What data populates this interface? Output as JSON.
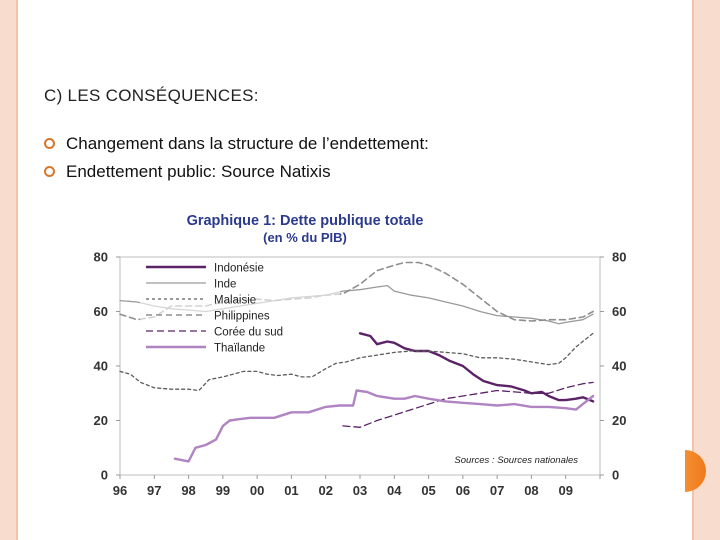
{
  "slide": {
    "title": "C) LES CONSÉQUENCES:",
    "bullets": [
      "Changement dans la structure de l’endettement:",
      "Endettement public: Source Natixis"
    ]
  },
  "colors": {
    "frame": "#f8dccd",
    "accent": "#ef7a1a",
    "bullet": "#d9772b"
  },
  "chart_data": {
    "type": "line",
    "title": "Graphique 1: Dette publique totale",
    "subtitle": "(en % du PIB)",
    "title_color": "#2b3a8c",
    "source": "Sources : Sources nationales",
    "xlim": [
      1996,
      2010
    ],
    "ylim": [
      0,
      80
    ],
    "y_ticks": [
      0,
      20,
      40,
      60,
      80
    ],
    "x_ticks": [
      {
        "value": 1996,
        "label": "96"
      },
      {
        "value": 1997,
        "label": "97"
      },
      {
        "value": 1998,
        "label": "98"
      },
      {
        "value": 1999,
        "label": "99"
      },
      {
        "value": 2000,
        "label": "00"
      },
      {
        "value": 2001,
        "label": "01"
      },
      {
        "value": 2002,
        "label": "02"
      },
      {
        "value": 2003,
        "label": "03"
      },
      {
        "value": 2004,
        "label": "04"
      },
      {
        "value": 2005,
        "label": "05"
      },
      {
        "value": 2006,
        "label": "06"
      },
      {
        "value": 2007,
        "label": "07"
      },
      {
        "value": 2008,
        "label": "08"
      },
      {
        "value": 2009,
        "label": "09"
      }
    ],
    "series": [
      {
        "name": "Indonésie",
        "color": "#5b2268",
        "width": 2.4,
        "dash": "",
        "points": [
          [
            2003.0,
            52
          ],
          [
            2003.3,
            51
          ],
          [
            2003.5,
            48
          ],
          [
            2003.8,
            49
          ],
          [
            2004.0,
            48.5
          ],
          [
            2004.3,
            46.5
          ],
          [
            2004.6,
            45.5
          ],
          [
            2005.0,
            45.5
          ],
          [
            2005.3,
            44
          ],
          [
            2005.6,
            42
          ],
          [
            2006.0,
            40
          ],
          [
            2006.3,
            37
          ],
          [
            2006.6,
            34.5
          ],
          [
            2007.0,
            33
          ],
          [
            2007.4,
            32.5
          ],
          [
            2007.8,
            31
          ],
          [
            2008.0,
            30
          ],
          [
            2008.3,
            30.5
          ],
          [
            2008.5,
            29
          ],
          [
            2008.8,
            27.5
          ],
          [
            2009.0,
            27.5
          ],
          [
            2009.3,
            28
          ],
          [
            2009.5,
            28.5
          ],
          [
            2009.8,
            27
          ]
        ]
      },
      {
        "name": "Inde",
        "color": "#9a9a9a",
        "width": 1.3,
        "dash": "",
        "points": [
          [
            1996.0,
            64
          ],
          [
            1996.5,
            63.5
          ],
          [
            1997.0,
            62
          ],
          [
            1997.5,
            61
          ],
          [
            1998.0,
            60.5
          ],
          [
            1998.5,
            60
          ],
          [
            1999.0,
            61
          ],
          [
            1999.5,
            62
          ],
          [
            2000.0,
            63
          ],
          [
            2000.5,
            64
          ],
          [
            2001.0,
            65
          ],
          [
            2001.5,
            65.5
          ],
          [
            2002.0,
            66
          ],
          [
            2002.5,
            67.5
          ],
          [
            2003.0,
            68
          ],
          [
            2003.5,
            69
          ],
          [
            2003.8,
            69.5
          ],
          [
            2004.0,
            67.5
          ],
          [
            2004.5,
            66
          ],
          [
            2005.0,
            65
          ],
          [
            2005.5,
            63.5
          ],
          [
            2006.0,
            62
          ],
          [
            2006.5,
            60
          ],
          [
            2007.0,
            58.5
          ],
          [
            2007.5,
            58
          ],
          [
            2008.0,
            57.5
          ],
          [
            2008.5,
            56.5
          ],
          [
            2008.8,
            55.5
          ],
          [
            2009.0,
            56
          ],
          [
            2009.5,
            57
          ],
          [
            2009.8,
            59
          ]
        ]
      },
      {
        "name": "Malaisie",
        "color": "#5c5c5c",
        "width": 1.3,
        "dash": "3,3",
        "points": [
          [
            1996.0,
            38
          ],
          [
            1996.3,
            37
          ],
          [
            1996.6,
            34
          ],
          [
            1997.0,
            32
          ],
          [
            1997.5,
            31.5
          ],
          [
            1998.0,
            31.5
          ],
          [
            1998.3,
            31
          ],
          [
            1998.6,
            35
          ],
          [
            1999.0,
            36
          ],
          [
            1999.3,
            37
          ],
          [
            1999.6,
            38
          ],
          [
            2000.0,
            38
          ],
          [
            2000.3,
            37
          ],
          [
            2000.6,
            36.5
          ],
          [
            2001.0,
            37
          ],
          [
            2001.3,
            36
          ],
          [
            2001.6,
            36
          ],
          [
            2002.0,
            39
          ],
          [
            2002.3,
            41
          ],
          [
            2002.6,
            41.5
          ],
          [
            2003.0,
            43
          ],
          [
            2003.5,
            44
          ],
          [
            2004.0,
            45
          ],
          [
            2004.5,
            45.5
          ],
          [
            2005.0,
            45.5
          ],
          [
            2005.5,
            45
          ],
          [
            2006.0,
            44.5
          ],
          [
            2006.5,
            43
          ],
          [
            2007.0,
            43
          ],
          [
            2007.5,
            42.5
          ],
          [
            2008.0,
            41.5
          ],
          [
            2008.5,
            40.5
          ],
          [
            2008.8,
            41
          ],
          [
            2009.0,
            43
          ],
          [
            2009.3,
            47
          ],
          [
            2009.8,
            52
          ]
        ]
      },
      {
        "name": "Philippines",
        "color": "#8e8e8e",
        "width": 1.6,
        "dash": "6,4",
        "points": [
          [
            1996.0,
            59
          ],
          [
            1996.5,
            57
          ],
          [
            1997.0,
            58
          ],
          [
            1997.5,
            62
          ],
          [
            1998.0,
            62
          ],
          [
            1998.5,
            62
          ],
          [
            1999.0,
            63.5
          ],
          [
            1999.5,
            64
          ],
          [
            2000.0,
            64.5
          ],
          [
            2000.5,
            64
          ],
          [
            2001.0,
            64.5
          ],
          [
            2001.5,
            65
          ],
          [
            2002.0,
            66
          ],
          [
            2002.5,
            66.5
          ],
          [
            2003.0,
            70
          ],
          [
            2003.5,
            75
          ],
          [
            2004.0,
            77
          ],
          [
            2004.3,
            78
          ],
          [
            2004.7,
            78
          ],
          [
            2005.0,
            77
          ],
          [
            2005.5,
            74
          ],
          [
            2006.0,
            70
          ],
          [
            2006.5,
            65
          ],
          [
            2007.0,
            60
          ],
          [
            2007.5,
            57
          ],
          [
            2008.0,
            56.5
          ],
          [
            2008.5,
            57
          ],
          [
            2009.0,
            57
          ],
          [
            2009.5,
            58
          ],
          [
            2009.8,
            60
          ]
        ]
      },
      {
        "name": "Corée du sud",
        "color": "#5b2268",
        "width": 1.3,
        "dash": "7,4",
        "points": [
          [
            2002.5,
            18
          ],
          [
            2003.0,
            17.5
          ],
          [
            2003.5,
            20
          ],
          [
            2004.0,
            22
          ],
          [
            2004.5,
            24
          ],
          [
            2005.0,
            26
          ],
          [
            2005.5,
            28
          ],
          [
            2006.0,
            29
          ],
          [
            2006.5,
            30
          ],
          [
            2007.0,
            31
          ],
          [
            2007.5,
            30.5
          ],
          [
            2008.0,
            30
          ],
          [
            2008.5,
            30
          ],
          [
            2009.0,
            32
          ],
          [
            2009.5,
            33.5
          ],
          [
            2009.8,
            34
          ]
        ]
      },
      {
        "name": "Thaïlande",
        "color": "#b084c2",
        "width": 2.4,
        "dash": "",
        "points": [
          [
            1997.6,
            6
          ],
          [
            1998.0,
            5
          ],
          [
            1998.2,
            10
          ],
          [
            1998.5,
            11
          ],
          [
            1998.8,
            13
          ],
          [
            1999.0,
            18
          ],
          [
            1999.2,
            20
          ],
          [
            1999.5,
            20.5
          ],
          [
            1999.8,
            21
          ],
          [
            2000.0,
            21
          ],
          [
            2000.5,
            21
          ],
          [
            2001.0,
            23
          ],
          [
            2001.5,
            23
          ],
          [
            2002.0,
            25
          ],
          [
            2002.4,
            25.5
          ],
          [
            2002.8,
            25.5
          ],
          [
            2002.9,
            31
          ],
          [
            2003.2,
            30.5
          ],
          [
            2003.5,
            29
          ],
          [
            2004.0,
            28
          ],
          [
            2004.3,
            28
          ],
          [
            2004.6,
            29
          ],
          [
            2005.0,
            28
          ],
          [
            2005.5,
            27
          ],
          [
            2006.0,
            26.5
          ],
          [
            2006.5,
            26
          ],
          [
            2007.0,
            25.5
          ],
          [
            2007.5,
            26
          ],
          [
            2008.0,
            25
          ],
          [
            2008.5,
            25
          ],
          [
            2009.0,
            24.5
          ],
          [
            2009.3,
            24
          ],
          [
            2009.5,
            26
          ],
          [
            2009.8,
            29
          ]
        ]
      }
    ]
  }
}
